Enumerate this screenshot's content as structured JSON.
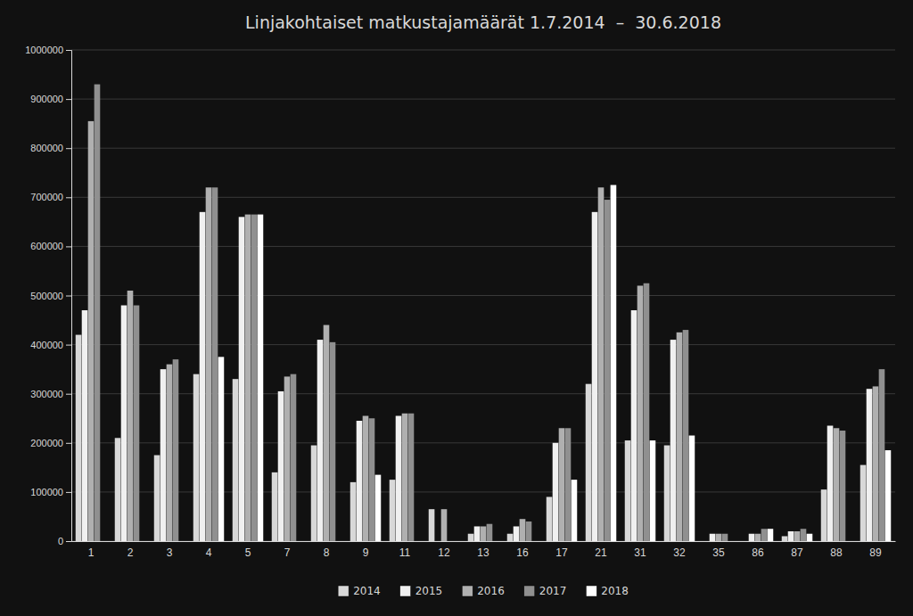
{
  "chart_data": {
    "type": "bar",
    "title": "Linjakohtaiset matkustajamäärät 1.7.2014  –  30.6.2018",
    "categories": [
      "1",
      "2",
      "3",
      "4",
      "5",
      "7",
      "8",
      "9",
      "11",
      "12",
      "13",
      "16",
      "17",
      "21",
      "31",
      "32",
      "35",
      "86",
      "87",
      "88",
      "89"
    ],
    "series": [
      {
        "name": "2014",
        "color": "#d8d8d8",
        "values": [
          420000,
          210000,
          175000,
          340000,
          330000,
          140000,
          195000,
          120000,
          125000,
          65000,
          15000,
          15000,
          90000,
          320000,
          205000,
          195000,
          0,
          0,
          10000,
          105000,
          155000
        ]
      },
      {
        "name": "2015",
        "color": "#f0f0f0",
        "values": [
          470000,
          480000,
          350000,
          670000,
          660000,
          305000,
          410000,
          245000,
          255000,
          0,
          30000,
          30000,
          200000,
          670000,
          470000,
          410000,
          15000,
          15000,
          20000,
          235000,
          310000
        ]
      },
      {
        "name": "2016",
        "color": "#b0b0b0",
        "values": [
          855000,
          510000,
          360000,
          720000,
          665000,
          335000,
          440000,
          255000,
          260000,
          65000,
          30000,
          45000,
          230000,
          720000,
          520000,
          425000,
          15000,
          15000,
          20000,
          230000,
          315000
        ]
      },
      {
        "name": "2017",
        "color": "#909090",
        "values": [
          930000,
          480000,
          370000,
          720000,
          665000,
          340000,
          405000,
          250000,
          260000,
          0,
          35000,
          40000,
          230000,
          695000,
          525000,
          430000,
          15000,
          25000,
          25000,
          225000,
          350000
        ]
      },
      {
        "name": "2018",
        "color": "#ffffff",
        "values": [
          0,
          0,
          0,
          375000,
          665000,
          0,
          0,
          135000,
          0,
          0,
          0,
          0,
          125000,
          725000,
          205000,
          215000,
          0,
          25000,
          15000,
          0,
          185000
        ]
      }
    ],
    "ylim": [
      0,
      1000000
    ],
    "yticks": [
      0,
      100000,
      200000,
      300000,
      400000,
      500000,
      600000,
      700000,
      800000,
      900000,
      1000000
    ],
    "grid": true,
    "legend": "bottom"
  }
}
